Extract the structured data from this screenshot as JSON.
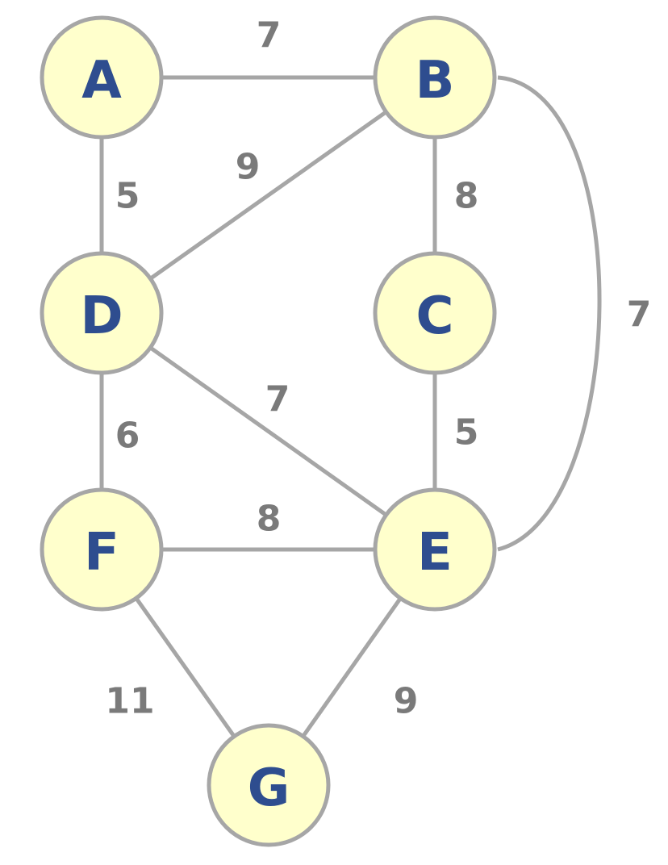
{
  "diagram": {
    "type": "weighted-undirected-graph",
    "colors": {
      "node_fill": "#ffffcc",
      "node_stroke": "#a6a6a6",
      "node_text": "#2e4d8f",
      "edge": "#a6a6a6",
      "weight_text": "#7a7a7a",
      "background": "#ffffff"
    },
    "nodes": [
      {
        "id": "A",
        "label": "A"
      },
      {
        "id": "B",
        "label": "B"
      },
      {
        "id": "C",
        "label": "C"
      },
      {
        "id": "D",
        "label": "D"
      },
      {
        "id": "E",
        "label": "E"
      },
      {
        "id": "F",
        "label": "F"
      },
      {
        "id": "G",
        "label": "G"
      }
    ],
    "edges": [
      {
        "from": "A",
        "to": "B",
        "weight": "7"
      },
      {
        "from": "A",
        "to": "D",
        "weight": "5"
      },
      {
        "from": "B",
        "to": "D",
        "weight": "9"
      },
      {
        "from": "B",
        "to": "C",
        "weight": "8"
      },
      {
        "from": "B",
        "to": "E",
        "weight": "7"
      },
      {
        "from": "C",
        "to": "E",
        "weight": "5"
      },
      {
        "from": "D",
        "to": "E",
        "weight": "7"
      },
      {
        "from": "D",
        "to": "F",
        "weight": "6"
      },
      {
        "from": "F",
        "to": "E",
        "weight": "8"
      },
      {
        "from": "F",
        "to": "G",
        "weight": "11"
      },
      {
        "from": "E",
        "to": "G",
        "weight": "9"
      }
    ]
  }
}
